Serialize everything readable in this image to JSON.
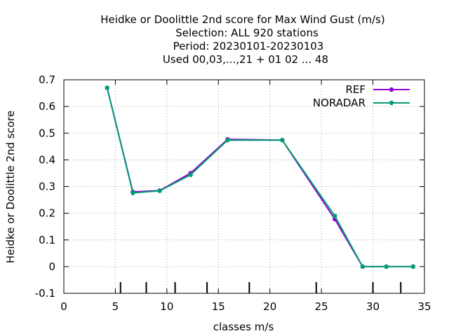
{
  "chart_data": {
    "type": "line",
    "title_lines": [
      "Heidke or Doolittle 2nd score  for Max Wind Gust (m/s)",
      "Selection: ALL    920 stations",
      "Period: 20230101-20230103",
      "Used  00,03,...,21  + 01 02 ... 48"
    ],
    "xlabel": "classes m/s",
    "ylabel": "Heidke or Doolittle 2nd score",
    "xlim": [
      0,
      35
    ],
    "ylim": [
      -0.1,
      0.7
    ],
    "xticks": [
      0,
      5,
      10,
      15,
      20,
      25,
      30,
      35
    ],
    "xtick_labels": [
      "0",
      "5",
      "10",
      "15",
      "20",
      "25",
      "30",
      "35"
    ],
    "yticks": [
      -0.1,
      0,
      0.1,
      0.2,
      0.3,
      0.4,
      0.5,
      0.6,
      0.7
    ],
    "ytick_labels": [
      "-0.1",
      "0",
      "0.1",
      "0.2",
      "0.3",
      "0.4",
      "0.5",
      "0.6",
      "0.7"
    ],
    "grid": true,
    "legend_position": "top-right",
    "class_boundaries": [
      5.5,
      8,
      10.8,
      13.9,
      18,
      24.5,
      30,
      32.7
    ],
    "series": [
      {
        "name": "REF",
        "color": "#9400d3",
        "x": [
          4.2,
          6.7,
          9.3,
          12.3,
          15.9,
          21.2,
          26.3,
          29.0,
          31.3,
          33.9
        ],
        "y": [
          0.67,
          0.28,
          0.285,
          0.35,
          0.477,
          0.474,
          0.178,
          0.0,
          0.0,
          0.0
        ]
      },
      {
        "name": "NORADAR",
        "color": "#009e73",
        "x": [
          4.2,
          6.7,
          9.3,
          12.3,
          15.9,
          21.2,
          26.3,
          29.0,
          31.3,
          33.9
        ],
        "y": [
          0.67,
          0.276,
          0.284,
          0.344,
          0.474,
          0.474,
          0.19,
          0.0,
          0.0,
          0.0
        ]
      }
    ]
  }
}
